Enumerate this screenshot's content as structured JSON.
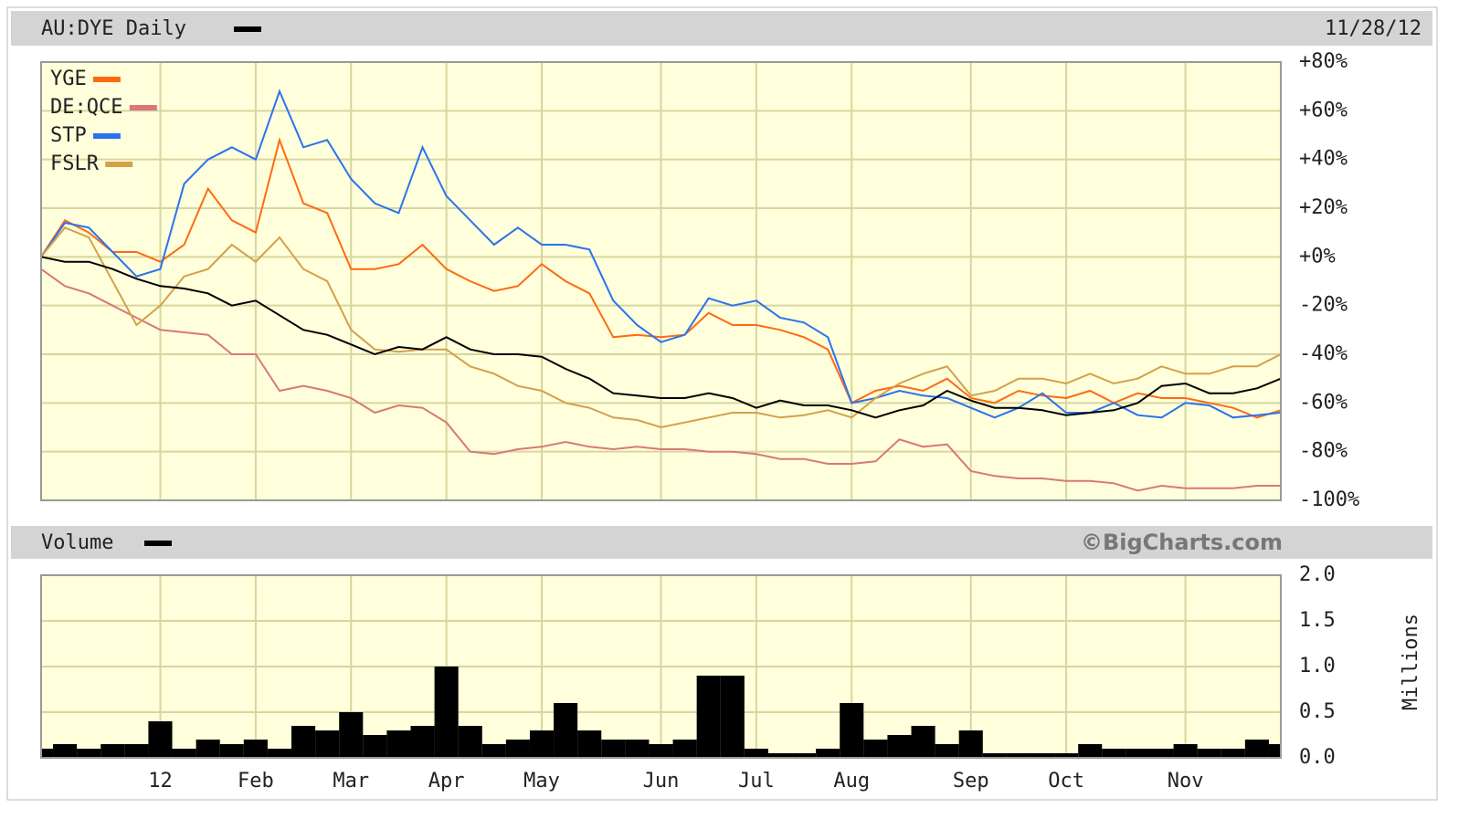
{
  "chart_data": [
    {
      "type": "line",
      "title": "AU:DYE Daily",
      "date": "11/28/12",
      "categories": [
        null,
        null,
        null,
        null,
        null,
        "12",
        null,
        null,
        null,
        "Feb",
        null,
        null,
        null,
        "Mar",
        null,
        null,
        null,
        "Apr",
        null,
        null,
        null,
        "May",
        null,
        null,
        null,
        null,
        "Jun",
        null,
        null,
        null,
        "Jul",
        null,
        null,
        null,
        "Aug",
        null,
        null,
        null,
        null,
        "Sep",
        null,
        null,
        null,
        "Oct",
        null,
        null,
        null,
        null,
        "Nov",
        null,
        null,
        null,
        null
      ],
      "ylim": [
        -100,
        80
      ],
      "yticks": [
        {
          "value": 80,
          "label": "+80%"
        },
        {
          "value": 60,
          "label": "+60%"
        },
        {
          "value": 40,
          "label": "+40%"
        },
        {
          "value": 20,
          "label": "+20%"
        },
        {
          "value": 0,
          "label": "+0%"
        },
        {
          "value": -20,
          "label": "-20%"
        },
        {
          "value": -40,
          "label": "-40%"
        },
        {
          "value": -60,
          "label": "-60%"
        },
        {
          "value": -80,
          "label": "-80%"
        },
        {
          "value": -100,
          "label": "-100%"
        }
      ],
      "grid": true,
      "legend": "top-left",
      "series": [
        {
          "name": "YGE",
          "color": "#ff6a10",
          "values": [
            0,
            15,
            10,
            2,
            2,
            -2,
            5,
            28,
            15,
            10,
            48,
            22,
            18,
            -5,
            -5,
            -3,
            5,
            -5,
            -10,
            -14,
            -12,
            -3,
            -10,
            -15,
            -33,
            -32,
            -33,
            -32,
            -23,
            -28,
            -28,
            -30,
            -33,
            -38,
            -60,
            -55,
            -53,
            -55,
            -50,
            -58,
            -60,
            -55,
            -57,
            -58,
            -55,
            -60,
            -56,
            -58,
            -58,
            -60,
            -62,
            -66,
            -63
          ]
        },
        {
          "name": "DE:QCE",
          "color": "#d9777a",
          "values": [
            -5,
            -12,
            -15,
            -20,
            -25,
            -30,
            -31,
            -32,
            -40,
            -40,
            -55,
            -53,
            -55,
            -58,
            -64,
            -61,
            -62,
            -68,
            -80,
            -81,
            -79,
            -78,
            -76,
            -78,
            -79,
            -78,
            -79,
            -79,
            -80,
            -80,
            -81,
            -83,
            -83,
            -85,
            -85,
            -84,
            -75,
            -78,
            -77,
            -88,
            -90,
            -91,
            -91,
            -92,
            -92,
            -93,
            -96,
            -94,
            -95,
            -95,
            -95,
            -94,
            -94
          ]
        },
        {
          "name": "STP",
          "color": "#2a72f0",
          "values": [
            0,
            14,
            12,
            2,
            -8,
            -5,
            30,
            40,
            45,
            40,
            68,
            45,
            48,
            32,
            22,
            18,
            45,
            25,
            15,
            5,
            12,
            5,
            5,
            3,
            -18,
            -28,
            -35,
            -32,
            -17,
            -20,
            -18,
            -25,
            -27,
            -33,
            -60,
            -58,
            -55,
            -57,
            -58,
            -62,
            -66,
            -62,
            -56,
            -64,
            -64,
            -60,
            -65,
            -66,
            -60,
            -61,
            -66,
            -65,
            -64
          ]
        },
        {
          "name": "FSLR",
          "color": "#d4a04a",
          "values": [
            0,
            12,
            8,
            -10,
            -28,
            -20,
            -8,
            -5,
            5,
            -2,
            8,
            -5,
            -10,
            -30,
            -38,
            -39,
            -38,
            -38,
            -45,
            -48,
            -53,
            -55,
            -60,
            -62,
            -66,
            -67,
            -70,
            -68,
            -66,
            -64,
            -64,
            -66,
            -65,
            -63,
            -66,
            -58,
            -52,
            -48,
            -45,
            -57,
            -55,
            -50,
            -50,
            -52,
            -48,
            -52,
            -50,
            -45,
            -48,
            -48,
            -45,
            -45,
            -40
          ]
        },
        {
          "color": "#000000",
          "values": [
            0,
            -2,
            -2,
            -5,
            -9,
            -12,
            -13,
            -15,
            -20,
            -18,
            -24,
            -30,
            -32,
            -36,
            -40,
            -37,
            -38,
            -33,
            -38,
            -40,
            -40,
            -41,
            -46,
            -50,
            -56,
            -57,
            -58,
            -58,
            -56,
            -58,
            -62,
            -59,
            -61,
            -61,
            -63,
            -66,
            -63,
            -61,
            -55,
            -59,
            -62,
            -62,
            -63,
            -65,
            -64,
            -63,
            -60,
            -53,
            -52,
            -56,
            -56,
            -54,
            -50
          ]
        }
      ]
    },
    {
      "type": "bar",
      "title": "Volume",
      "credit": "©BigCharts.com",
      "ylabel": "Millions",
      "color": "#000000",
      "ylim": [
        0,
        2
      ],
      "yticks": [
        {
          "value": 0,
          "label": "0.0"
        },
        0.5,
        {
          "value": 1,
          "label": "1.0"
        },
        1.5,
        {
          "value": 2,
          "label": "2.0"
        }
      ],
      "grid": true,
      "values": [
        0.1,
        0.15,
        0.1,
        0.15,
        0.15,
        0.4,
        0.1,
        0.2,
        0.15,
        0.2,
        0.1,
        0.35,
        0.3,
        0.5,
        0.25,
        0.3,
        0.35,
        1.0,
        0.35,
        0.15,
        0.2,
        0.3,
        0.6,
        0.3,
        0.2,
        0.2,
        0.15,
        0.2,
        0.9,
        0.9,
        0.1,
        0.05,
        0.05,
        0.1,
        0.6,
        0.2,
        0.25,
        0.35,
        0.15,
        0.3,
        0.05,
        0.05,
        0.05,
        0.05,
        0.15,
        0.1,
        0.1,
        0.1,
        0.15,
        0.1,
        0.1,
        0.2,
        0.15
      ]
    }
  ]
}
